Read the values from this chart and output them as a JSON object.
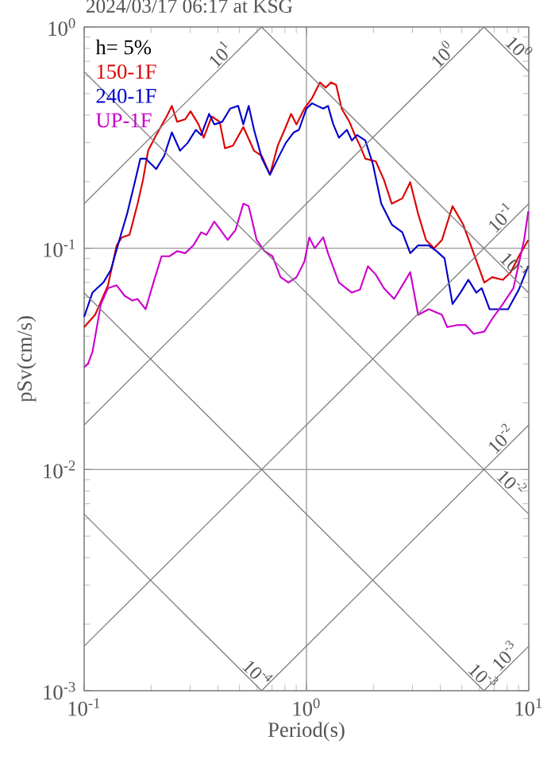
{
  "chart_data": {
    "type": "line",
    "title": "2024/03/17 06:17 at KSG",
    "xlabel": "Period(s)",
    "ylabel": "pSv(cm/s)",
    "legend_title": "h= 5%",
    "log": "xy",
    "grid": true,
    "legend": "top left",
    "marker": "none",
    "xlim": [
      0.1,
      10
    ],
    "ylim": [
      0.001,
      1
    ],
    "xticks": [
      {
        "value": 0.1,
        "label": "10$^{-1}$"
      },
      {
        "value": 1,
        "label": "10$^{0}$"
      },
      {
        "value": 10,
        "label": "10$^{1}$"
      }
    ],
    "yticks": [
      {
        "value": 0.001,
        "label": "10$^{-3}$"
      },
      {
        "value": 0.01,
        "label": "10$^{-2}$"
      },
      {
        "value": 0.1,
        "label": "10$^{-1}$"
      },
      {
        "value": 1,
        "label": "10$^{0}$"
      }
    ],
    "series": [
      {
        "name": "150-1F",
        "color": "#dd0000",
        "x": [
          0.1,
          0.112,
          0.128,
          0.14,
          0.148,
          0.16,
          0.174,
          0.184,
          0.194,
          0.211,
          0.235,
          0.248,
          0.262,
          0.285,
          0.301,
          0.327,
          0.345,
          0.375,
          0.407,
          0.43,
          0.467,
          0.52,
          0.581,
          0.631,
          0.685,
          0.743,
          0.807,
          0.853,
          0.902,
          0.979,
          1.06,
          1.15,
          1.22,
          1.29,
          1.36,
          1.44,
          1.56,
          1.65,
          1.74,
          1.84,
          2.05,
          2.23,
          2.42,
          2.7,
          2.93,
          3.18,
          3.45,
          3.75,
          4.07,
          4.54,
          5.07,
          5.65,
          6.31,
          6.85,
          7.65,
          8.3,
          9.02,
          9.95
        ],
        "values": [
          0.044,
          0.05,
          0.068,
          0.103,
          0.112,
          0.115,
          0.159,
          0.204,
          0.276,
          0.325,
          0.394,
          0.44,
          0.373,
          0.383,
          0.416,
          0.363,
          0.316,
          0.394,
          0.373,
          0.283,
          0.291,
          0.353,
          0.276,
          0.261,
          0.215,
          0.291,
          0.353,
          0.405,
          0.363,
          0.428,
          0.477,
          0.562,
          0.532,
          0.562,
          0.547,
          0.428,
          0.373,
          0.325,
          0.291,
          0.254,
          0.247,
          0.204,
          0.159,
          0.168,
          0.199,
          0.143,
          0.109,
          0.1,
          0.109,
          0.155,
          0.128,
          0.095,
          0.07,
          0.074,
          0.072,
          0.078,
          0.092,
          0.109
        ]
      },
      {
        "name": "240-1F",
        "color": "#0000cc",
        "x": [
          0.1,
          0.109,
          0.122,
          0.132,
          0.144,
          0.156,
          0.169,
          0.179,
          0.189,
          0.211,
          0.229,
          0.248,
          0.27,
          0.292,
          0.318,
          0.336,
          0.365,
          0.385,
          0.418,
          0.454,
          0.493,
          0.52,
          0.55,
          0.581,
          0.631,
          0.685,
          0.743,
          0.807,
          0.877,
          0.925,
          1.0,
          1.06,
          1.12,
          1.19,
          1.25,
          1.32,
          1.4,
          1.52,
          1.6,
          1.69,
          1.84,
          1.99,
          2.17,
          2.42,
          2.7,
          2.93,
          3.18,
          3.55,
          3.85,
          4.18,
          4.54,
          4.93,
          5.35,
          5.81,
          6.14,
          6.67,
          7.23,
          8.07,
          9.02,
          9.95
        ],
        "values": [
          0.049,
          0.063,
          0.07,
          0.08,
          0.109,
          0.143,
          0.199,
          0.254,
          0.254,
          0.228,
          0.261,
          0.334,
          0.276,
          0.299,
          0.343,
          0.325,
          0.405,
          0.363,
          0.373,
          0.428,
          0.44,
          0.363,
          0.44,
          0.343,
          0.254,
          0.215,
          0.254,
          0.299,
          0.334,
          0.343,
          0.428,
          0.452,
          0.44,
          0.428,
          0.44,
          0.363,
          0.316,
          0.343,
          0.307,
          0.325,
          0.307,
          0.24,
          0.159,
          0.128,
          0.118,
          0.095,
          0.103,
          0.103,
          0.097,
          0.09,
          0.056,
          0.063,
          0.072,
          0.063,
          0.066,
          0.053,
          0.053,
          0.053,
          0.065,
          0.083
        ]
      },
      {
        "name": "UP-1F",
        "color": "#cc00cc",
        "x": [
          0.1,
          0.104,
          0.109,
          0.119,
          0.128,
          0.14,
          0.152,
          0.165,
          0.174,
          0.189,
          0.205,
          0.223,
          0.242,
          0.262,
          0.285,
          0.31,
          0.336,
          0.355,
          0.385,
          0.418,
          0.442,
          0.48,
          0.52,
          0.55,
          0.597,
          0.648,
          0.704,
          0.765,
          0.83,
          0.902,
          0.979,
          1.03,
          1.09,
          1.19,
          1.25,
          1.4,
          1.6,
          1.74,
          1.89,
          2.05,
          2.23,
          2.48,
          2.7,
          2.93,
          3.18,
          3.55,
          4.07,
          4.3,
          4.8,
          5.2,
          5.65,
          6.31,
          6.85,
          7.65,
          8.53,
          9.53,
          9.95
        ],
        "values": [
          0.029,
          0.03,
          0.034,
          0.056,
          0.066,
          0.068,
          0.061,
          0.058,
          0.059,
          0.053,
          0.07,
          0.092,
          0.092,
          0.097,
          0.095,
          0.103,
          0.118,
          0.115,
          0.132,
          0.118,
          0.109,
          0.121,
          0.159,
          0.155,
          0.109,
          0.097,
          0.092,
          0.074,
          0.07,
          0.074,
          0.087,
          0.112,
          0.1,
          0.112,
          0.095,
          0.07,
          0.063,
          0.065,
          0.083,
          0.076,
          0.066,
          0.059,
          0.068,
          0.078,
          0.05,
          0.053,
          0.05,
          0.044,
          0.045,
          0.045,
          0.041,
          0.042,
          0.048,
          0.056,
          0.066,
          0.109,
          0.147
        ]
      },
      {
        "color": "#808080",
        "x": [
          0.1,
          0.628
        ],
        "values": [
          0.159,
          1
        ]
      },
      {
        "color": "#808080",
        "x": [
          0.1,
          6.28
        ],
        "values": [
          0.0159,
          1
        ]
      },
      {
        "color": "#808080",
        "x": [
          0.1,
          10
        ],
        "values": [
          0.00159,
          0.159
        ]
      },
      {
        "color": "#808080",
        "x": [
          0.628,
          10
        ],
        "values": [
          0.001,
          0.0159
        ]
      },
      {
        "color": "#808080",
        "x": [
          6.28,
          10
        ],
        "values": [
          0.001,
          0.00159
        ]
      },
      {
        "color": "#808080",
        "x": [
          6.28,
          10
        ],
        "values": [
          1,
          0.628
        ]
      },
      {
        "color": "#808080",
        "x": [
          0.628,
          10
        ],
        "values": [
          1,
          0.0628
        ]
      },
      {
        "color": "#808080",
        "x": [
          0.1,
          10
        ],
        "values": [
          0.628,
          0.00628
        ]
      },
      {
        "color": "#808080",
        "x": [
          0.1,
          6.28
        ],
        "values": [
          0.0628,
          0.001
        ]
      },
      {
        "color": "#808080",
        "x": [
          0.1,
          0.628
        ],
        "values": [
          0.00628,
          0.001
        ]
      }
    ],
    "annotations": [
      {
        "text": "10$^{1}$",
        "x": 0.44,
        "y": 0.7
      },
      {
        "text": "10$^{0}$",
        "x": 4.4,
        "y": 0.7
      },
      {
        "text": "10$^{0}$",
        "x": 8.4,
        "y": 0.75
      },
      {
        "text": "10$^{-1}$",
        "x": 8.05,
        "y": 0.128
      },
      {
        "text": "10$^{-1}$",
        "x": 8.05,
        "y": 0.078
      },
      {
        "text": "10$^{-2}$",
        "x": 8.05,
        "y": 0.0128
      },
      {
        "text": "10$^{-2}$",
        "x": 7.8,
        "y": 0.0081
      },
      {
        "text": "10$^{-3}$",
        "x": 8.4,
        "y": 0.00134
      },
      {
        "text": "10$^{-3}$",
        "x": 5.8,
        "y": 0.00108
      },
      {
        "text": "10$^{-4}$",
        "x": 0.56,
        "y": 0.00112
      }
    ]
  }
}
